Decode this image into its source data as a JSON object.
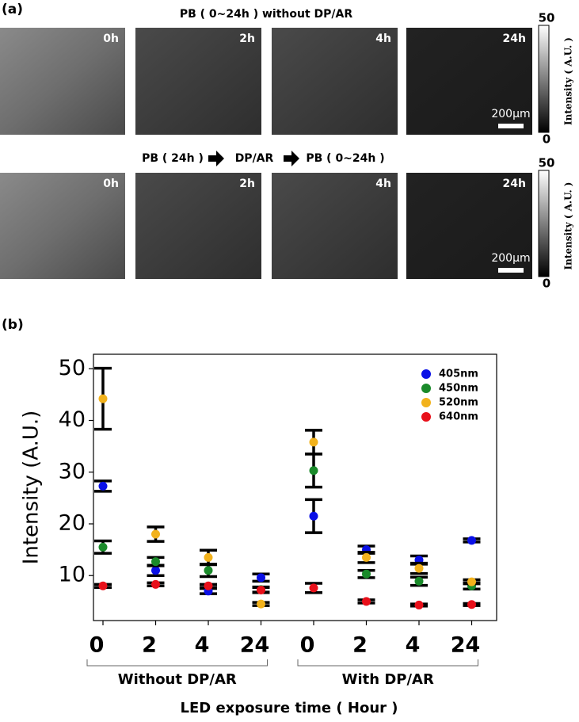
{
  "panel_a": {
    "label": "(a)",
    "rows": [
      {
        "title": [
          "PB ( 0~24h ) without DP/AR"
        ],
        "images": [
          "0h",
          "2h",
          "4h",
          "24h"
        ],
        "scale_bar": "200μm",
        "colorbar": {
          "max": 50,
          "min": 0,
          "label": "Intensity ( A.U. )"
        }
      },
      {
        "title": [
          "PB ( 24h )",
          "DP/AR",
          "PB ( 0~24h )"
        ],
        "images": [
          "0h",
          "2h",
          "4h",
          "24h"
        ],
        "scale_bar": "200μm",
        "colorbar": {
          "max": 50,
          "min": 0,
          "label": "Intensity ( A.U. )"
        }
      }
    ]
  },
  "panel_b_label": "(b)",
  "chart_data": {
    "type": "scatter",
    "y_label": "Intensity (A.U.)",
    "x_label": "LED exposure time ( Hour )",
    "categories": [
      "0",
      "2",
      "4",
      "24",
      "0",
      "2",
      "4",
      "24"
    ],
    "groups": [
      "Without DP/AR",
      "With DP/AR"
    ],
    "ylim": [
      1.3,
      52.8
    ],
    "yticks": [
      10,
      20,
      30,
      40,
      50
    ],
    "legend": "upper right",
    "series": [
      {
        "name": "405nm",
        "color": "#0a10e6",
        "values": [
          27.3,
          11.0,
          7.0,
          9.6,
          21.5,
          15.0,
          13.0,
          16.8
        ],
        "errors": [
          1.0,
          1.0,
          0.5,
          0.7,
          3.2,
          0.7,
          0.8,
          0.3
        ]
      },
      {
        "name": "450nm",
        "color": "#1a8a2a",
        "values": [
          15.5,
          12.7,
          11.0,
          7.3,
          30.3,
          10.3,
          8.9,
          8.0
        ],
        "errors": [
          1.2,
          0.8,
          1.2,
          0.5,
          3.2,
          0.7,
          0.8,
          0.6
        ]
      },
      {
        "name": "520nm",
        "color": "#f2b21c",
        "values": [
          44.2,
          18.0,
          13.5,
          4.5,
          35.8,
          13.5,
          11.4,
          8.8
        ],
        "errors": [
          5.9,
          1.4,
          1.4,
          0.3,
          2.3,
          1.0,
          1.0,
          0.4
        ]
      },
      {
        "name": "640nm",
        "color": "#e8101a",
        "values": [
          8.0,
          8.3,
          8.0,
          7.2,
          7.6,
          5.0,
          4.3,
          4.4
        ],
        "errors": [
          0.3,
          0.3,
          0.3,
          0.5,
          0.9,
          0.3,
          0.2,
          0.2
        ]
      }
    ]
  }
}
